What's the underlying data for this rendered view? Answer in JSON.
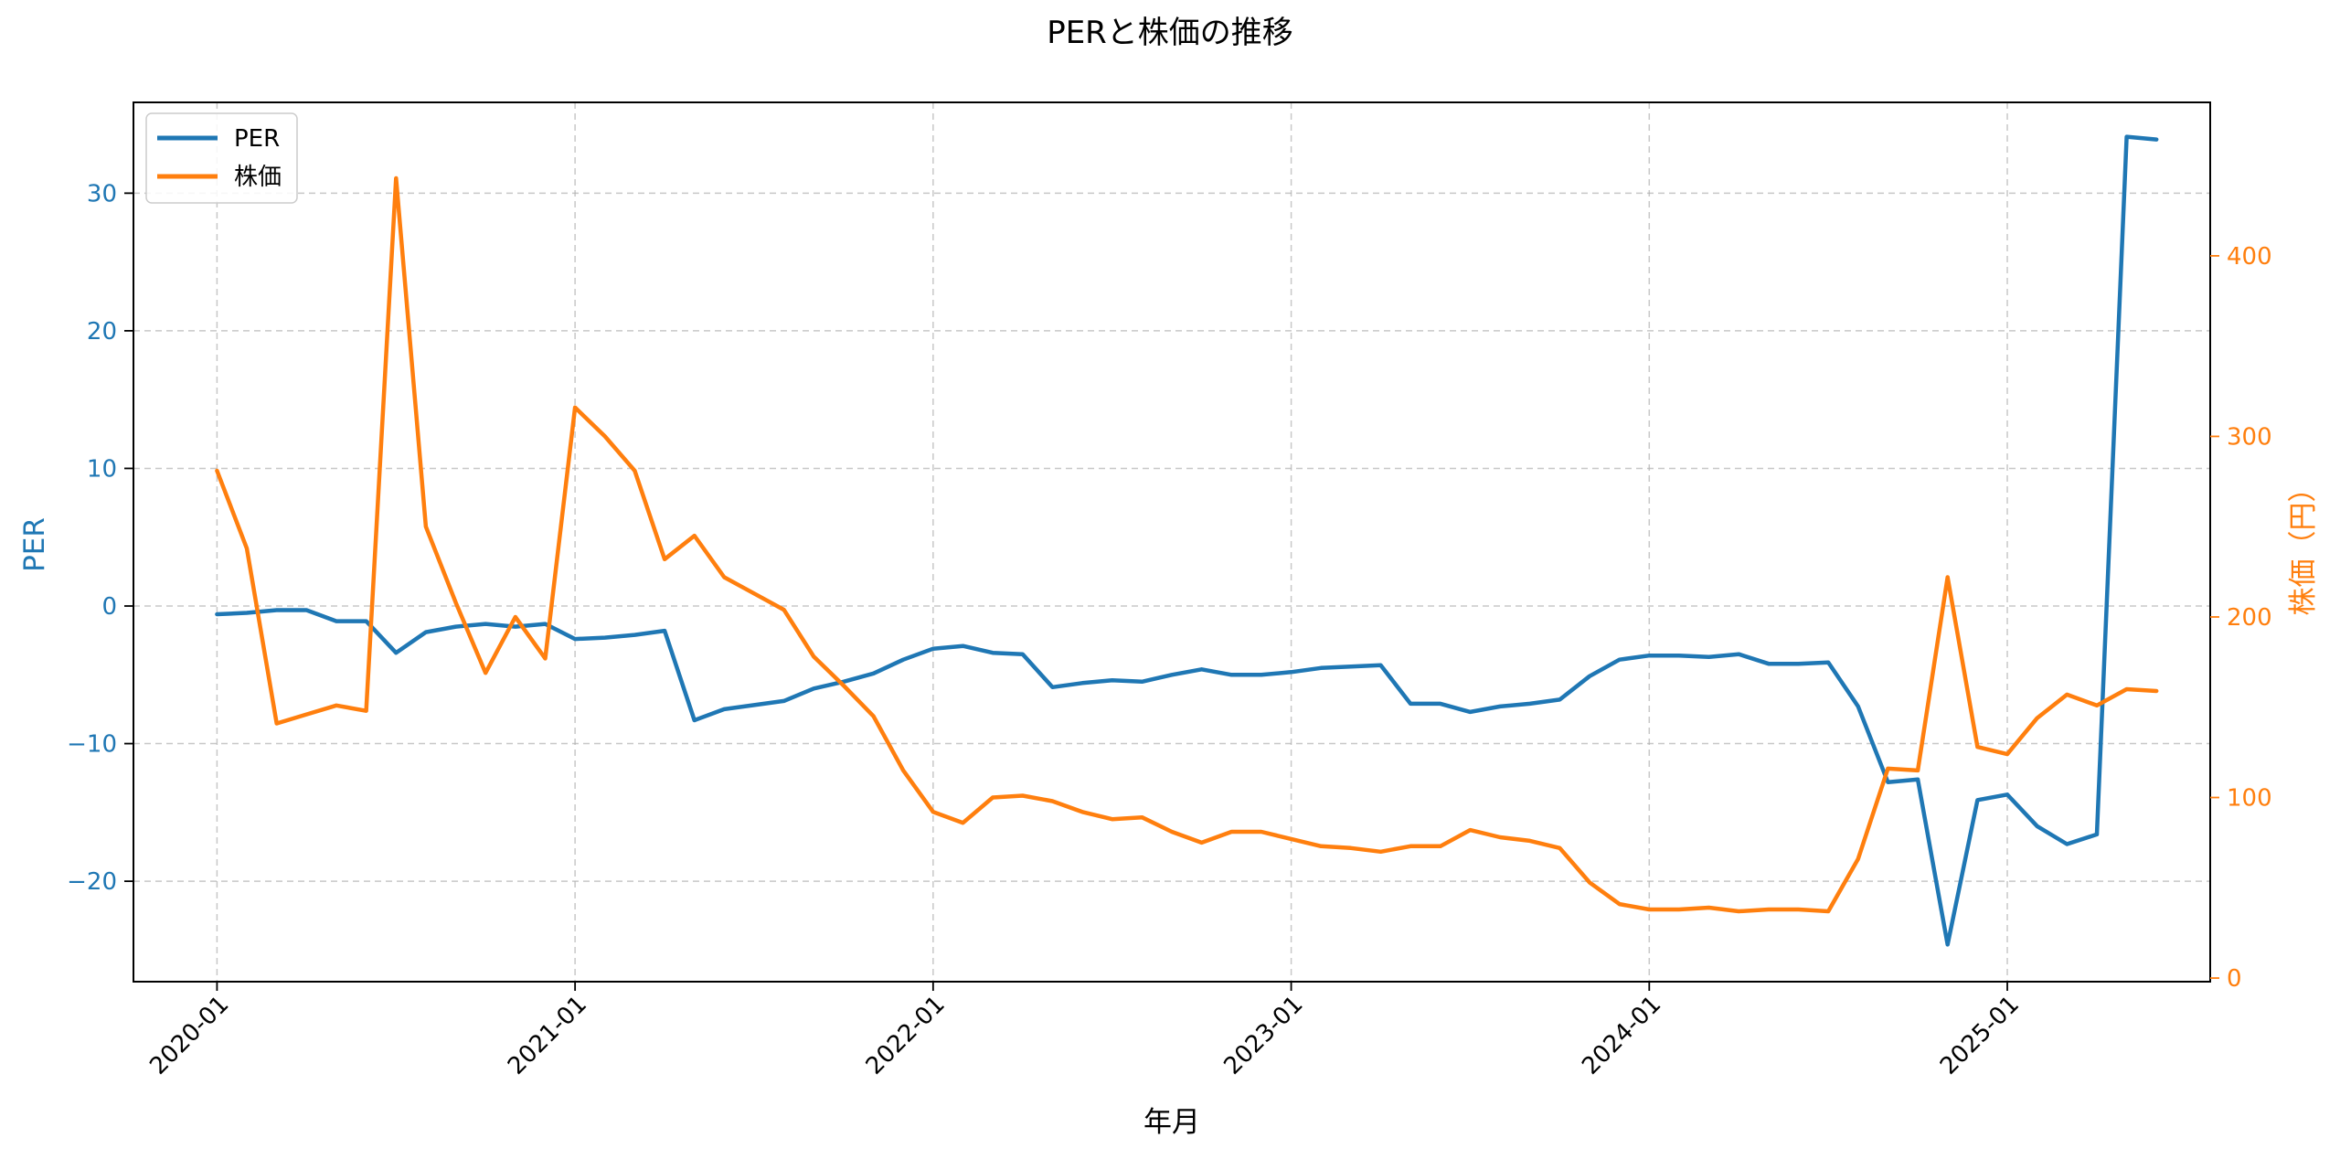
{
  "chart_data": {
    "type": "line",
    "title": "PERと株価の推移",
    "xlabel": "年月",
    "ylabel_left": "PER",
    "ylabel_right": "株価（円）",
    "x_ticks": [
      "2020-01",
      "2021-01",
      "2022-01",
      "2023-01",
      "2024-01",
      "2025-01"
    ],
    "x_range_months": [
      -2.8,
      66.8
    ],
    "y_left_range": [
      -27.3,
      36.6
    ],
    "y_left_ticks": [
      -20,
      -10,
      0,
      10,
      20,
      30
    ],
    "y_right_range": [
      -2,
      485
    ],
    "y_right_ticks": [
      0,
      100,
      200,
      300,
      400
    ],
    "legend": {
      "position": "top-left",
      "entries": [
        "PER",
        "株価"
      ]
    },
    "grid": true,
    "colors": {
      "per": "#1f77b4",
      "price": "#ff7f0e"
    },
    "series": [
      {
        "name": "PER",
        "axis": "left",
        "x_months": [
          0,
          1,
          2,
          3,
          4,
          5,
          6,
          7,
          8,
          9,
          10,
          11,
          12,
          13,
          14,
          15,
          16,
          17,
          18,
          19,
          20,
          21,
          22,
          23,
          24,
          25,
          26,
          27,
          28,
          29,
          30,
          31,
          32,
          33,
          34,
          35,
          36,
          37,
          38,
          39,
          40,
          41,
          42,
          43,
          44,
          45,
          46,
          47,
          48,
          49,
          50,
          51,
          52,
          53,
          54,
          55,
          56,
          57,
          58,
          59,
          60,
          61,
          62,
          63,
          64,
          65
        ],
        "values": [
          -0.6,
          -0.5,
          -0.3,
          -0.3,
          -1.1,
          -1.1,
          -3.4,
          -1.9,
          -1.5,
          -1.3,
          -1.5,
          -1.3,
          -2.4,
          -2.3,
          -2.1,
          -1.8,
          -8.3,
          -7.5,
          -7.2,
          -6.9,
          -6.0,
          -5.5,
          -4.9,
          -3.9,
          -3.1,
          -2.9,
          -3.4,
          -3.5,
          -5.9,
          -5.6,
          -5.4,
          -5.5,
          -5.0,
          -4.6,
          -5.0,
          -5.0,
          -4.8,
          -4.5,
          -4.4,
          -4.3,
          -7.1,
          -7.1,
          -7.7,
          -7.3,
          -7.1,
          -6.8,
          -5.1,
          -3.9,
          -3.6,
          -3.6,
          -3.7,
          -3.5,
          -4.2,
          -4.2,
          -4.1,
          -7.3,
          -12.8,
          -12.6,
          -24.6,
          -14.1,
          -13.7,
          -16.0,
          -17.3,
          -16.6,
          34.1,
          33.9
        ]
      },
      {
        "name": "株価",
        "axis": "right",
        "x_months": [
          0,
          1,
          2,
          3,
          4,
          5,
          6,
          7,
          8,
          9,
          10,
          11,
          12,
          13,
          14,
          15,
          16,
          17,
          18,
          19,
          20,
          21,
          22,
          23,
          24,
          25,
          26,
          27,
          28,
          29,
          30,
          31,
          32,
          33,
          34,
          35,
          36,
          37,
          38,
          39,
          40,
          41,
          42,
          43,
          44,
          45,
          46,
          47,
          48,
          49,
          50,
          51,
          52,
          53,
          54,
          55,
          56,
          57,
          58,
          59,
          60,
          61,
          62,
          63,
          64,
          65
        ],
        "values": [
          281,
          238,
          141,
          146,
          151,
          148,
          443,
          250,
          208,
          169,
          200,
          177,
          316,
          300,
          281,
          232,
          245,
          222,
          213,
          204,
          178,
          162,
          145,
          115,
          92,
          86,
          100,
          101,
          98,
          92,
          88,
          89,
          81,
          75,
          81,
          81,
          77,
          73,
          72,
          70,
          73,
          73,
          82,
          78,
          76,
          72,
          53,
          41,
          38,
          38,
          39,
          37,
          38,
          38,
          37,
          66,
          116,
          115,
          222,
          128,
          124,
          144,
          157,
          151,
          160,
          159
        ]
      }
    ]
  }
}
